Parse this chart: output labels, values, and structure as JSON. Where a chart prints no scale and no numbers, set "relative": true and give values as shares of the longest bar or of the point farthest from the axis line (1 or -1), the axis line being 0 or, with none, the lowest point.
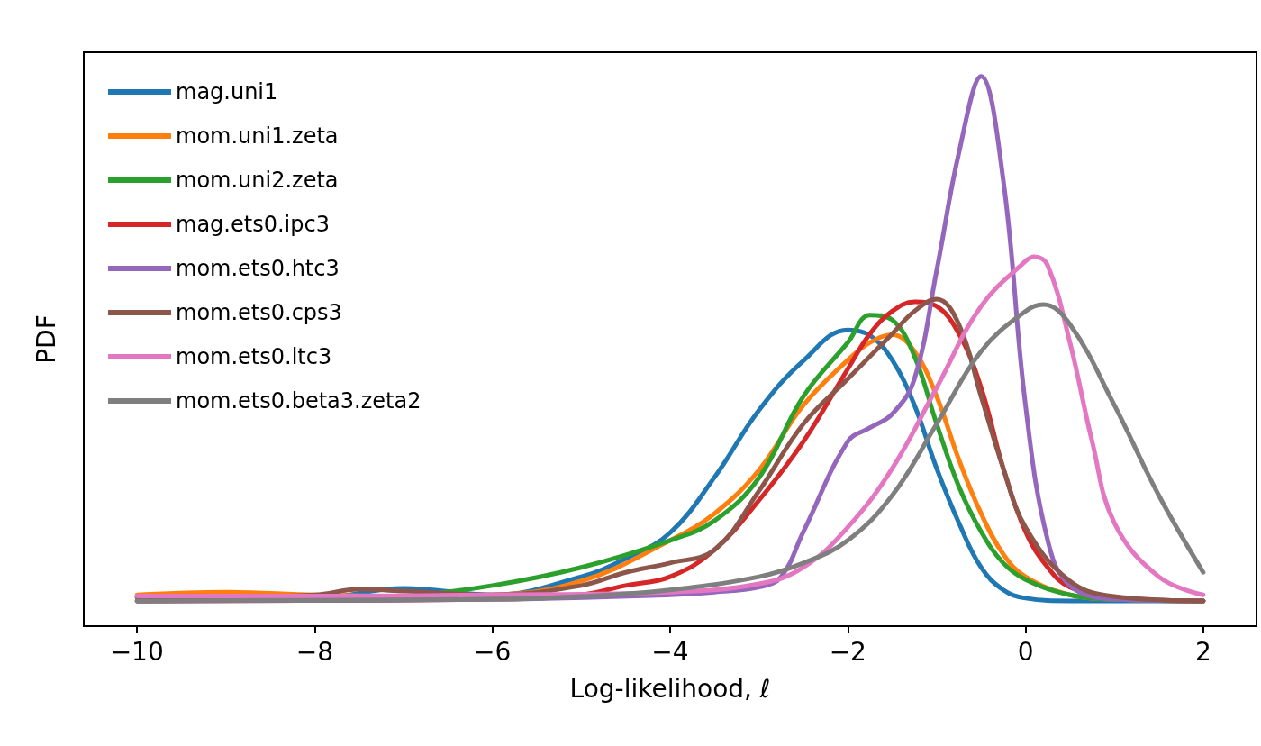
{
  "chart_data": {
    "type": "line",
    "xlabel": "Log-likelihood, ℓ",
    "ylabel": "PDF",
    "relative": true,
    "xlim": [
      -10.6,
      2.6
    ],
    "xticks": [
      -10,
      -8,
      -6,
      -4,
      -2,
      0,
      2
    ],
    "tick_labels": "x",
    "grid": false,
    "legend": "top left",
    "marker": "none",
    "line_style": "solid",
    "series": [
      {
        "name": "mag.uni1",
        "color": "#1f77b4",
        "x": [
          -10,
          -9,
          -8,
          -7,
          -6,
          -5,
          -4.5,
          -4,
          -3.5,
          -3,
          -2.5,
          -2,
          -1.75,
          -1.5,
          -1.25,
          -1,
          -0.75,
          -0.5,
          -0.25,
          0,
          0.5,
          1,
          2
        ],
        "values": [
          0.053,
          0.051,
          0.051,
          0.069,
          0.057,
          0.09,
          0.123,
          0.17,
          0.271,
          0.393,
          0.483,
          0.539,
          0.529,
          0.484,
          0.402,
          0.287,
          0.188,
          0.107,
          0.066,
          0.051,
          0.046,
          0.046,
          0.046
        ]
      },
      {
        "name": "mom.uni1.zeta",
        "color": "#ff7f0e",
        "x": [
          -10,
          -9,
          -8,
          -7,
          -6,
          -5,
          -4,
          -3.5,
          -3,
          -2.5,
          -2,
          -1.75,
          -1.5,
          -1.25,
          -1,
          -0.75,
          -0.5,
          -0.25,
          0,
          0.5,
          1,
          2
        ],
        "values": [
          0.057,
          0.062,
          0.057,
          0.055,
          0.057,
          0.082,
          0.156,
          0.205,
          0.284,
          0.402,
          0.484,
          0.516,
          0.53,
          0.5,
          0.418,
          0.303,
          0.205,
          0.131,
          0.09,
          0.057,
          0.049,
          0.046
        ]
      },
      {
        "name": "mom.uni2.zeta",
        "color": "#2ca02c",
        "x": [
          -10,
          -8,
          -7,
          -6,
          -5,
          -4,
          -3.5,
          -3,
          -2.5,
          -2,
          -1.75,
          -1.5,
          -1.25,
          -1,
          -0.75,
          -0.5,
          -0.25,
          0,
          0.5,
          1,
          2
        ],
        "values": [
          0.046,
          0.049,
          0.054,
          0.074,
          0.107,
          0.156,
          0.192,
          0.27,
          0.418,
          0.516,
          0.566,
          0.557,
          0.491,
          0.368,
          0.254,
          0.172,
          0.115,
          0.085,
          0.057,
          0.049,
          0.046
        ]
      },
      {
        "name": "mag.ets0.ipc3",
        "color": "#d62728",
        "x": [
          -10,
          -6,
          -5,
          -4.5,
          -4,
          -3.5,
          -3,
          -2.5,
          -2,
          -1.75,
          -1.5,
          -1.25,
          -1,
          -0.75,
          -0.5,
          -0.25,
          0,
          0.25,
          0.5,
          1,
          2
        ],
        "values": [
          0.046,
          0.049,
          0.057,
          0.074,
          0.09,
          0.139,
          0.229,
          0.336,
          0.468,
          0.532,
          0.573,
          0.59,
          0.582,
          0.532,
          0.434,
          0.287,
          0.172,
          0.107,
          0.071,
          0.053,
          0.046
        ]
      },
      {
        "name": "mom.ets0.htc3",
        "color": "#9467bd",
        "x": [
          -10,
          -6,
          -4,
          -3.5,
          -3,
          -2.75,
          -2.5,
          -2,
          -1.75,
          -1.5,
          -1.25,
          -1,
          -0.75,
          -0.5,
          -0.25,
          0,
          0.25,
          0.5,
          1,
          2
        ],
        "values": [
          0.046,
          0.049,
          0.057,
          0.062,
          0.071,
          0.09,
          0.172,
          0.336,
          0.361,
          0.386,
          0.45,
          0.647,
          0.861,
          1,
          0.811,
          0.402,
          0.156,
          0.074,
          0.049,
          0.046
        ]
      },
      {
        "name": "mom.ets0.cps3",
        "color": "#8c564b",
        "x": [
          -10,
          -9,
          -8,
          -7.5,
          -7,
          -6,
          -5,
          -4.5,
          -4,
          -3.5,
          -3,
          -2.5,
          -2,
          -1.5,
          -1.25,
          -1,
          -0.75,
          -0.5,
          -0.25,
          0,
          0.5,
          1,
          2
        ],
        "values": [
          0.053,
          0.053,
          0.057,
          0.067,
          0.064,
          0.057,
          0.074,
          0.098,
          0.115,
          0.139,
          0.246,
          0.368,
          0.45,
          0.532,
          0.573,
          0.595,
          0.549,
          0.418,
          0.287,
          0.18,
          0.082,
          0.054,
          0.046
        ]
      },
      {
        "name": "mom.ets0.ltc3",
        "color": "#e377c2",
        "x": [
          -10,
          -8,
          -6,
          -4,
          -3,
          -2.5,
          -2,
          -1.5,
          -1,
          -0.5,
          0,
          0.1,
          0.25,
          0.5,
          0.75,
          1,
          1.5,
          2
        ],
        "values": [
          0.055,
          0.055,
          0.057,
          0.062,
          0.077,
          0.107,
          0.18,
          0.287,
          0.434,
          0.582,
          0.664,
          0.672,
          0.656,
          0.516,
          0.336,
          0.188,
          0.09,
          0.057
        ]
      },
      {
        "name": "mom.ets0.beta3.zeta2",
        "color": "#7f7f7f",
        "x": [
          -10,
          -6,
          -5,
          -4,
          -3,
          -2.5,
          -2,
          -1.5,
          -1,
          -0.5,
          0,
          0.2,
          0.5,
          1,
          1.5,
          2
        ],
        "values": [
          0.046,
          0.049,
          0.054,
          0.066,
          0.09,
          0.115,
          0.156,
          0.238,
          0.368,
          0.5,
          0.573,
          0.585,
          0.549,
          0.402,
          0.238,
          0.098
        ]
      }
    ]
  }
}
